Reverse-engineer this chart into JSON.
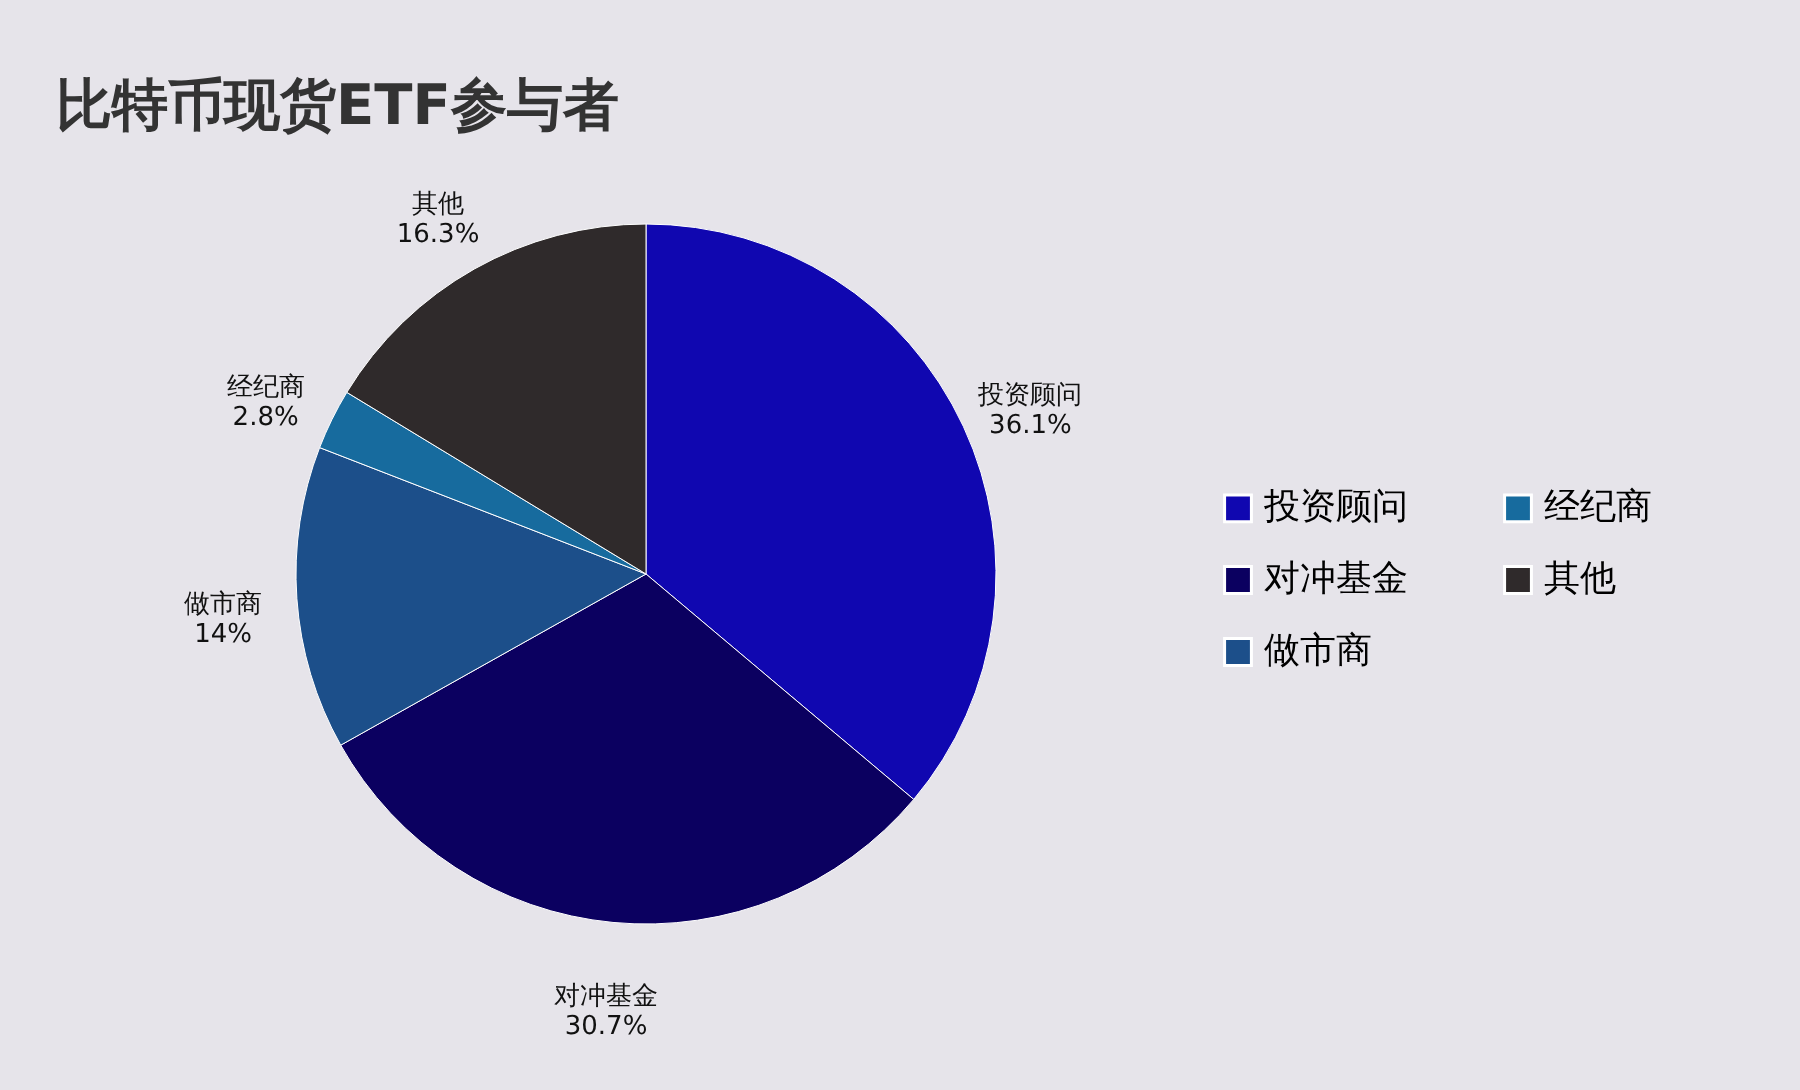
{
  "chart_data": {
    "type": "pie",
    "title": "比特币现货ETF参与者",
    "categories": [
      "投资顾问",
      "对冲基金",
      "做市商",
      "经纪商",
      "其他"
    ],
    "values": [
      36.1,
      30.7,
      14,
      2.8,
      16.3
    ],
    "value_labels": [
      "36.1%",
      "30.7%",
      "14%",
      "2.8%",
      "16.3%"
    ],
    "colors": [
      "#1007b0",
      "#0b0060",
      "#1c4f8a",
      "#176b9e",
      "#2f2a2b"
    ],
    "legend": "right"
  }
}
